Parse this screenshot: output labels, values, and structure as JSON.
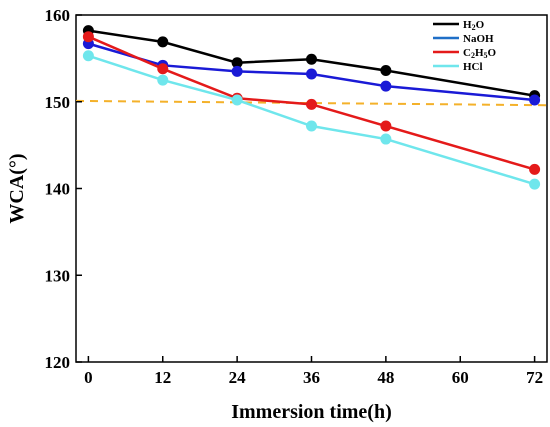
{
  "chart_data": {
    "type": "line",
    "xlabel": "Immersion time(h)",
    "ylabel": "WCA(°)",
    "x": [
      0,
      12,
      24,
      36,
      48,
      72
    ],
    "xticks": [
      "0",
      "12",
      "24",
      "36",
      "48",
      "60",
      "72"
    ],
    "xtick_values": [
      0,
      12,
      24,
      36,
      48,
      60,
      72
    ],
    "xlim": [
      -2,
      74
    ],
    "yticks": [
      "120",
      "130",
      "140",
      "150",
      "160"
    ],
    "ytick_values": [
      120,
      130,
      140,
      150,
      160
    ],
    "ylim": [
      120,
      160
    ],
    "grid": false,
    "legend_position": "top-right",
    "series": [
      {
        "name": "H",
        "name_sub": "2",
        "name_suffix": "O",
        "color": "#000000",
        "values": [
          158.2,
          156.9,
          154.5,
          154.9,
          153.6,
          150.7
        ]
      },
      {
        "name": "NaOH",
        "color": "#1a1ad6",
        "legend_color": "#1f6fc7",
        "values": [
          156.7,
          154.2,
          153.5,
          153.2,
          151.8,
          150.2
        ]
      },
      {
        "name": "C",
        "name_sub": "2",
        "name_suffix": "H",
        "name_sub2": "5",
        "name_suffix2": "O",
        "color": "#e41a1a",
        "values": [
          157.5,
          153.8,
          150.4,
          149.7,
          147.2,
          142.2
        ]
      },
      {
        "name": "HCl",
        "color": "#6fe6ec",
        "values": [
          155.3,
          152.5,
          150.2,
          147.2,
          145.7,
          140.5
        ]
      }
    ],
    "reference_line": {
      "y_start": 150.1,
      "y_end": 149.6,
      "color": "#f4b12a",
      "style": "dashed"
    }
  }
}
